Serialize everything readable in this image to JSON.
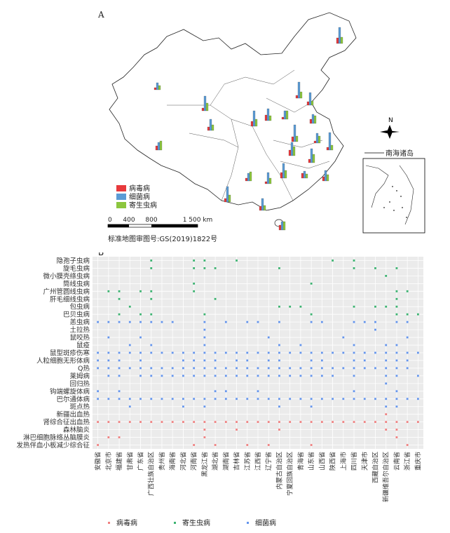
{
  "panel_a": {
    "label": "A",
    "legend": [
      {
        "name": "病毒病",
        "color": "#e8393c"
      },
      {
        "name": "细菌病",
        "color": "#5b9bd5"
      },
      {
        "name": "寄生虫病",
        "color": "#8cc63e"
      }
    ],
    "scale_ticks": [
      "0",
      "400",
      "800",
      "1 500 km"
    ],
    "inset_label": "南海诸岛",
    "north_label": "N",
    "map_caption": "标准地图审图号:GS(2019)1822号"
  },
  "chart_data": {
    "type": "scatter",
    "label": "B",
    "y_categories": [
      "隐孢子虫病",
      "旋毛虫病",
      "微小膜壳绦虫病",
      "筒线虫病",
      "广州管圆线虫病",
      "肝毛细线虫病",
      "包虫病",
      "巴贝虫病",
      "恙虫病",
      "土拉热",
      "鼠咬热",
      "鼠疫",
      "鼠型斑疹伤寒",
      "人粒细胞无形体病",
      "Q热",
      "莱姆病",
      "回归热",
      "钩端螺旋体病",
      "巴尔通体病",
      "斑点热",
      "新疆出血热",
      "肾综合征出血热",
      "森林脑炎",
      "淋巴细胞脉络丛脑膜炎",
      "发热伴血小板减少综合征"
    ],
    "x_categories": [
      "安徽省",
      "北京市",
      "福建省",
      "甘肃省",
      "广东省",
      "广西壮族自治区",
      "贵州省",
      "海南省",
      "河北省",
      "河南省",
      "黑龙江省",
      "湖北省",
      "湖南省",
      "吉林省",
      "江苏省",
      "江西省",
      "辽宁省",
      "内蒙古自治区",
      "宁夏回族自治区",
      "青海省",
      "山东省",
      "山西省",
      "陕西省",
      "上海市",
      "四川省",
      "天津市",
      "西藏自治区",
      "新疆维吾尔自治区",
      "云南省",
      "浙江省",
      "重庆市"
    ],
    "legend": [
      {
        "name": "病毒病",
        "color": "#f08080"
      },
      {
        "name": "寄生虫病",
        "color": "#3cb371"
      },
      {
        "name": "细菌病",
        "color": "#6495ed"
      }
    ],
    "points": {
      "隐孢子虫病": {
        "type": "寄生虫病",
        "x": [
          "广西壮族自治区",
          "河南省",
          "黑龙江省",
          "吉林省",
          "陕西省",
          "四川省"
        ]
      },
      "旋毛虫病": {
        "type": "寄生虫病",
        "x": [
          "广西壮族自治区",
          "河南省",
          "黑龙江省",
          "湖北省",
          "内蒙古自治区",
          "四川省",
          "西藏自治区",
          "云南省"
        ]
      },
      "微小膜壳绦虫病": {
        "type": "寄生虫病",
        "x": [
          "新疆维吾尔自治区"
        ]
      },
      "筒线虫病": {
        "type": "寄生虫病",
        "x": [
          "河南省",
          "山东省"
        ]
      },
      "广州管圆线虫病": {
        "type": "寄生虫病",
        "x": [
          "北京市",
          "福建省",
          "广东省",
          "广西壮族自治区",
          "河南省",
          "云南省",
          "浙江省"
        ]
      },
      "肝毛细线虫病": {
        "type": "寄生虫病",
        "x": [
          "福建省",
          "广西壮族自治区",
          "湖北省",
          "云南省"
        ]
      },
      "包虫病": {
        "type": "寄生虫病",
        "x": [
          "甘肃省",
          "内蒙古自治区",
          "宁夏回族自治区",
          "青海省",
          "四川省",
          "西藏自治区",
          "新疆维吾尔自治区",
          "云南省"
        ]
      },
      "巴贝虫病": {
        "type": "寄生虫病",
        "x": [
          "福建省",
          "广东省",
          "广西壮族自治区",
          "黑龙江省",
          "山东省",
          "云南省",
          "浙江省",
          "重庆市"
        ]
      },
      "恙虫病": {
        "type": "细菌病",
        "x": [
          "安徽省",
          "北京市",
          "福建省",
          "甘肃省",
          "广东省",
          "广西壮族自治区",
          "贵州省",
          "海南省",
          "黑龙江省",
          "湖南省",
          "江苏省",
          "江西省",
          "内蒙古自治区",
          "山东省",
          "山西省",
          "四川省",
          "天津市",
          "西藏自治区",
          "云南省",
          "浙江省"
        ]
      },
      "土拉热": {
        "type": "细菌病",
        "x": [
          "黑龙江省",
          "西藏自治区"
        ]
      },
      "鼠咬热": {
        "type": "细菌病",
        "x": [
          "北京市",
          "广东省",
          "黑龙江省",
          "辽宁省",
          "上海市",
          "浙江省"
        ]
      },
      "鼠疫": {
        "type": "细菌病",
        "x": [
          "甘肃省",
          "广西壮族自治区",
          "黑龙江省",
          "内蒙古自治区",
          "青海省",
          "四川省",
          "新疆维吾尔自治区",
          "云南省"
        ]
      },
      "鼠型斑疹伤寒": {
        "type": "细菌病",
        "x": [
          "安徽省",
          "北京市",
          "福建省",
          "甘肃省",
          "广东省",
          "广西壮族自治区",
          "贵州省",
          "海南省",
          "河北省",
          "河南省",
          "黑龙江省",
          "湖北省",
          "湖南省",
          "吉林省",
          "江苏省",
          "江西省",
          "辽宁省",
          "内蒙古自治区",
          "宁夏回族自治区",
          "青海省",
          "山东省",
          "山西省",
          "陕西省",
          "上海市",
          "四川省",
          "天津市",
          "西藏自治区",
          "新疆维吾尔自治区",
          "云南省",
          "浙江省",
          "重庆市"
        ]
      },
      "人粒细胞无形体病": {
        "type": "细菌病",
        "x": [
          "安徽省",
          "北京市",
          "福建省",
          "广东省",
          "河北省",
          "河南省",
          "黑龙江省",
          "湖北省",
          "吉林省",
          "江苏省",
          "辽宁省",
          "内蒙古自治区",
          "山东省",
          "山西省",
          "四川省",
          "天津市",
          "新疆维吾尔自治区",
          "云南省",
          "浙江省"
        ]
      },
      "Q热": {
        "type": "细菌病",
        "x": [
          "安徽省",
          "北京市",
          "福建省",
          "甘肃省",
          "广东省",
          "广西壮族自治区",
          "贵州省",
          "海南省",
          "河北省",
          "河南省",
          "黑龙江省",
          "湖北省",
          "湖南省",
          "吉林省",
          "江苏省",
          "江西省",
          "辽宁省",
          "内蒙古自治区",
          "宁夏回族自治区",
          "青海省",
          "山东省",
          "山西省",
          "陕西省",
          "上海市",
          "四川省",
          "天津市",
          "西藏自治区",
          "新疆维吾尔自治区",
          "云南省",
          "浙江省"
        ]
      },
      "莱姆病": {
        "type": "细菌病",
        "x": [
          "北京市",
          "福建省",
          "广东省",
          "广西壮族自治区",
          "贵州省",
          "海南省",
          "河北省",
          "河南省",
          "黑龙江省",
          "湖北省",
          "湖南省",
          "吉林省",
          "江苏省",
          "江西省",
          "辽宁省",
          "内蒙古自治区",
          "宁夏回族自治区",
          "青海省",
          "山东省",
          "山西省",
          "陕西省",
          "四川省",
          "新疆维吾尔自治区",
          "云南省",
          "重庆市"
        ]
      },
      "回归热": {
        "type": "细菌病",
        "x": [
          "新疆维吾尔自治区"
        ]
      },
      "钩端螺旋体病": {
        "type": "细菌病",
        "x": [
          "安徽省",
          "福建省",
          "湖北省",
          "湖南省",
          "江西省",
          "四川省",
          "云南省"
        ]
      },
      "巴尔通体病": {
        "type": "细菌病",
        "x": [
          "安徽省",
          "北京市",
          "福建省",
          "甘肃省",
          "广东省",
          "广西壮族自治区",
          "贵州省",
          "海南省",
          "河北省",
          "河南省",
          "黑龙江省",
          "湖北省",
          "湖南省",
          "吉林省",
          "江苏省",
          "江西省",
          "辽宁省",
          "内蒙古自治区",
          "宁夏回族自治区",
          "青海省",
          "山东省",
          "山西省",
          "陕西省",
          "上海市",
          "四川省",
          "天津市",
          "西藏自治区",
          "新疆维吾尔自治区",
          "云南省",
          "浙江省",
          "重庆市"
        ]
      },
      "斑点热": {
        "type": "细菌病",
        "x": [
          "甘肃省",
          "河北省",
          "黑龙江省",
          "内蒙古自治区",
          "山东省",
          "新疆维吾尔自治区",
          "云南省"
        ]
      },
      "新疆出血热": {
        "type": "病毒病",
        "x": [
          "新疆维吾尔自治区"
        ]
      },
      "肾综合征出血热": {
        "type": "病毒病",
        "x": [
          "安徽省",
          "北京市",
          "福建省",
          "甘肃省",
          "广东省",
          "广西壮族自治区",
          "贵州省",
          "海南省",
          "河北省",
          "河南省",
          "黑龙江省",
          "湖北省",
          "湖南省",
          "吉林省",
          "江苏省",
          "江西省",
          "辽宁省",
          "内蒙古自治区",
          "宁夏回族自治区",
          "青海省",
          "山东省",
          "山西省",
          "陕西省",
          "上海市",
          "四川省",
          "天津市",
          "西藏自治区",
          "新疆维吾尔自治区",
          "云南省",
          "浙江省",
          "重庆市"
        ]
      },
      "森林脑炎": {
        "type": "病毒病",
        "x": [
          "黑龙江省",
          "吉林省",
          "内蒙古自治区",
          "新疆维吾尔自治区",
          "云南省"
        ]
      },
      "淋巴细胞脉络丛脑膜炎": {
        "type": "病毒病",
        "x": [
          "北京市",
          "福建省",
          "黑龙江省",
          "云南省"
        ]
      },
      "发热伴血小板减少综合征": {
        "type": "病毒病",
        "x": [
          "安徽省",
          "河南省",
          "湖北省",
          "江苏省",
          "辽宁省",
          "山东省",
          "浙江省"
        ]
      }
    }
  }
}
